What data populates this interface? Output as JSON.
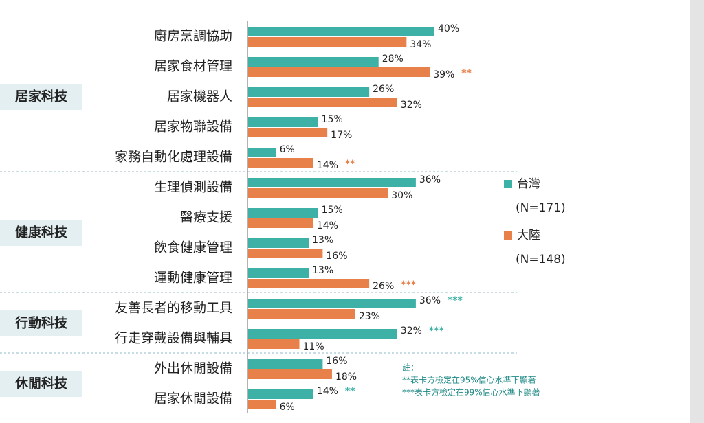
{
  "chart_data": {
    "type": "bar",
    "categories": [
      "廚房烹調協助",
      "居家食材管理",
      "居家機器人",
      "居家物聯設備",
      "家務自動化處理設備",
      "生理偵測設備",
      "醫療支援",
      "飲食健康管理",
      "運動健康管理",
      "友善長者的移動工具",
      "行走穿戴設備與輔具",
      "外出休閒設備",
      "居家休閒設備"
    ],
    "series": [
      {
        "name": "台灣",
        "sample": "(N=171)",
        "color": "#3eb1a6",
        "values": [
          40,
          28,
          26,
          15,
          6,
          36,
          15,
          13,
          13,
          36,
          32,
          16,
          14
        ],
        "value_labels": [
          "40%",
          "28%",
          "26%",
          "15%",
          "6%",
          "36%",
          "15%",
          "13%",
          "13%",
          "36%",
          "32%",
          "16%",
          "14%"
        ]
      },
      {
        "name": "大陸",
        "sample": "(N=148)",
        "color": "#e8804a",
        "values": [
          34,
          39,
          32,
          17,
          14,
          30,
          14,
          16,
          26,
          23,
          11,
          18,
          6
        ],
        "value_labels": [
          "34%",
          "39%",
          "32%",
          "17%",
          "14%",
          "30%",
          "14%",
          "16%",
          "26%",
          "23%",
          "11%",
          "18%",
          "6%"
        ]
      }
    ],
    "annotations": [
      {
        "series": 1,
        "index": 1,
        "text": "**"
      },
      {
        "series": 1,
        "index": 4,
        "text": "**"
      },
      {
        "series": 1,
        "index": 8,
        "text": "***"
      },
      {
        "series": 0,
        "index": 9,
        "text": "***"
      },
      {
        "series": 0,
        "index": 10,
        "text": "***"
      },
      {
        "series": 0,
        "index": 12,
        "text": "**"
      }
    ],
    "groups": [
      {
        "label": "居家科技",
        "start": 0,
        "end": 4
      },
      {
        "label": "健康科技",
        "start": 5,
        "end": 8
      },
      {
        "label": "行動科技",
        "start": 9,
        "end": 10
      },
      {
        "label": "休閒科技",
        "start": 11,
        "end": 12
      }
    ],
    "notes": [
      "註：",
      "**表卡方檢定在95%信心水準下顯著",
      "***表卡方檢定在99%信心水準下顯著"
    ]
  }
}
